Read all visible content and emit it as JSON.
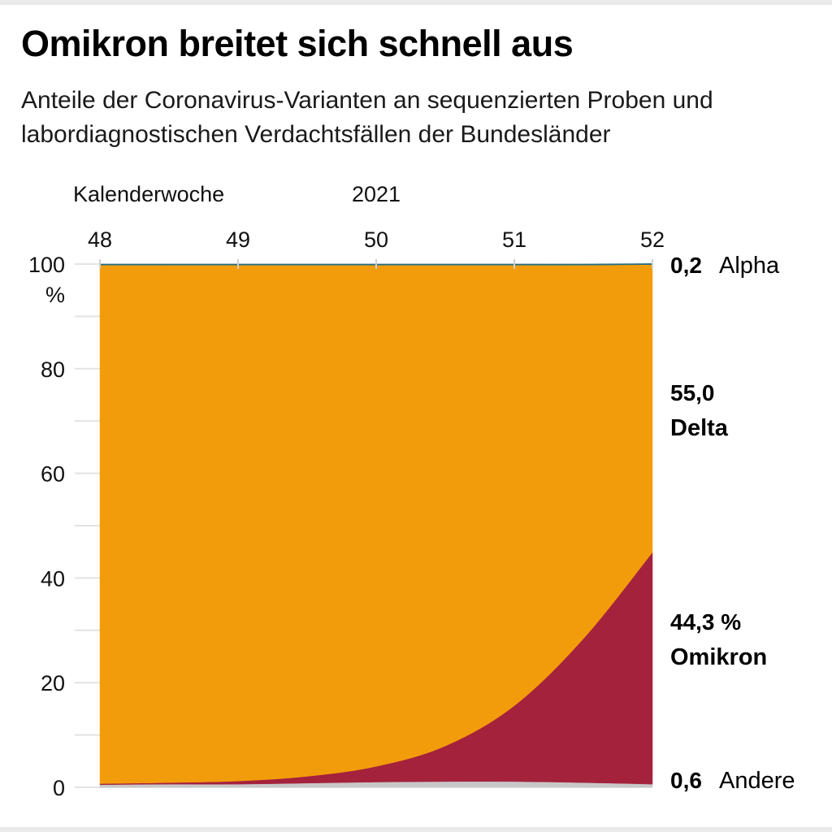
{
  "title": "Omikron breitet sich schnell aus",
  "subtitle_lines": [
    "Anteile der Coronavirus-Varianten an sequenzierten Proben und",
    "labordiagnostischen Verdachtsfällen der Bundesländer"
  ],
  "chart_data": {
    "type": "area",
    "stacked": true,
    "x_axis_label": "Kalenderwoche",
    "year_label": "2021",
    "categories": [
      "48",
      "49",
      "50",
      "51",
      "52"
    ],
    "x": [
      48,
      48.5,
      49,
      49.5,
      50,
      50.5,
      51,
      51.5,
      52
    ],
    "y_unit": "%",
    "ylim": [
      0,
      100
    ],
    "y_ticks": [
      "0",
      "20",
      "40",
      "60",
      "80",
      "100"
    ],
    "series": [
      {
        "name": "Andere",
        "color": "#c8c8c8",
        "values": [
          0.5,
          0.6,
          0.6,
          0.8,
          1.0,
          1.1,
          1.1,
          0.9,
          0.6
        ]
      },
      {
        "name": "Omikron",
        "color": "#a4223c",
        "values": [
          0.2,
          0.3,
          0.6,
          1.3,
          3.0,
          6.8,
          14.5,
          27.5,
          44.3
        ]
      },
      {
        "name": "Delta",
        "color": "#f39c0b",
        "values": [
          99.1,
          98.9,
          98.6,
          97.7,
          95.8,
          91.9,
          84.2,
          71.4,
          55.0
        ]
      },
      {
        "name": "Alpha",
        "color": "#1f6f86",
        "values": [
          0.2,
          0.2,
          0.2,
          0.2,
          0.2,
          0.2,
          0.2,
          0.2,
          0.2
        ]
      }
    ],
    "end_labels": [
      {
        "series": "Alpha",
        "value": "0,2",
        "name": "Alpha"
      },
      {
        "series": "Delta",
        "value": "55,0",
        "name": "Delta",
        "name_color": "#f39c0b"
      },
      {
        "series": "Omikron",
        "value": "44,3 %",
        "name": "Omikron",
        "name_color": "#a4223c"
      },
      {
        "series": "Andere",
        "value": "0,6",
        "name": "Andere"
      }
    ]
  }
}
